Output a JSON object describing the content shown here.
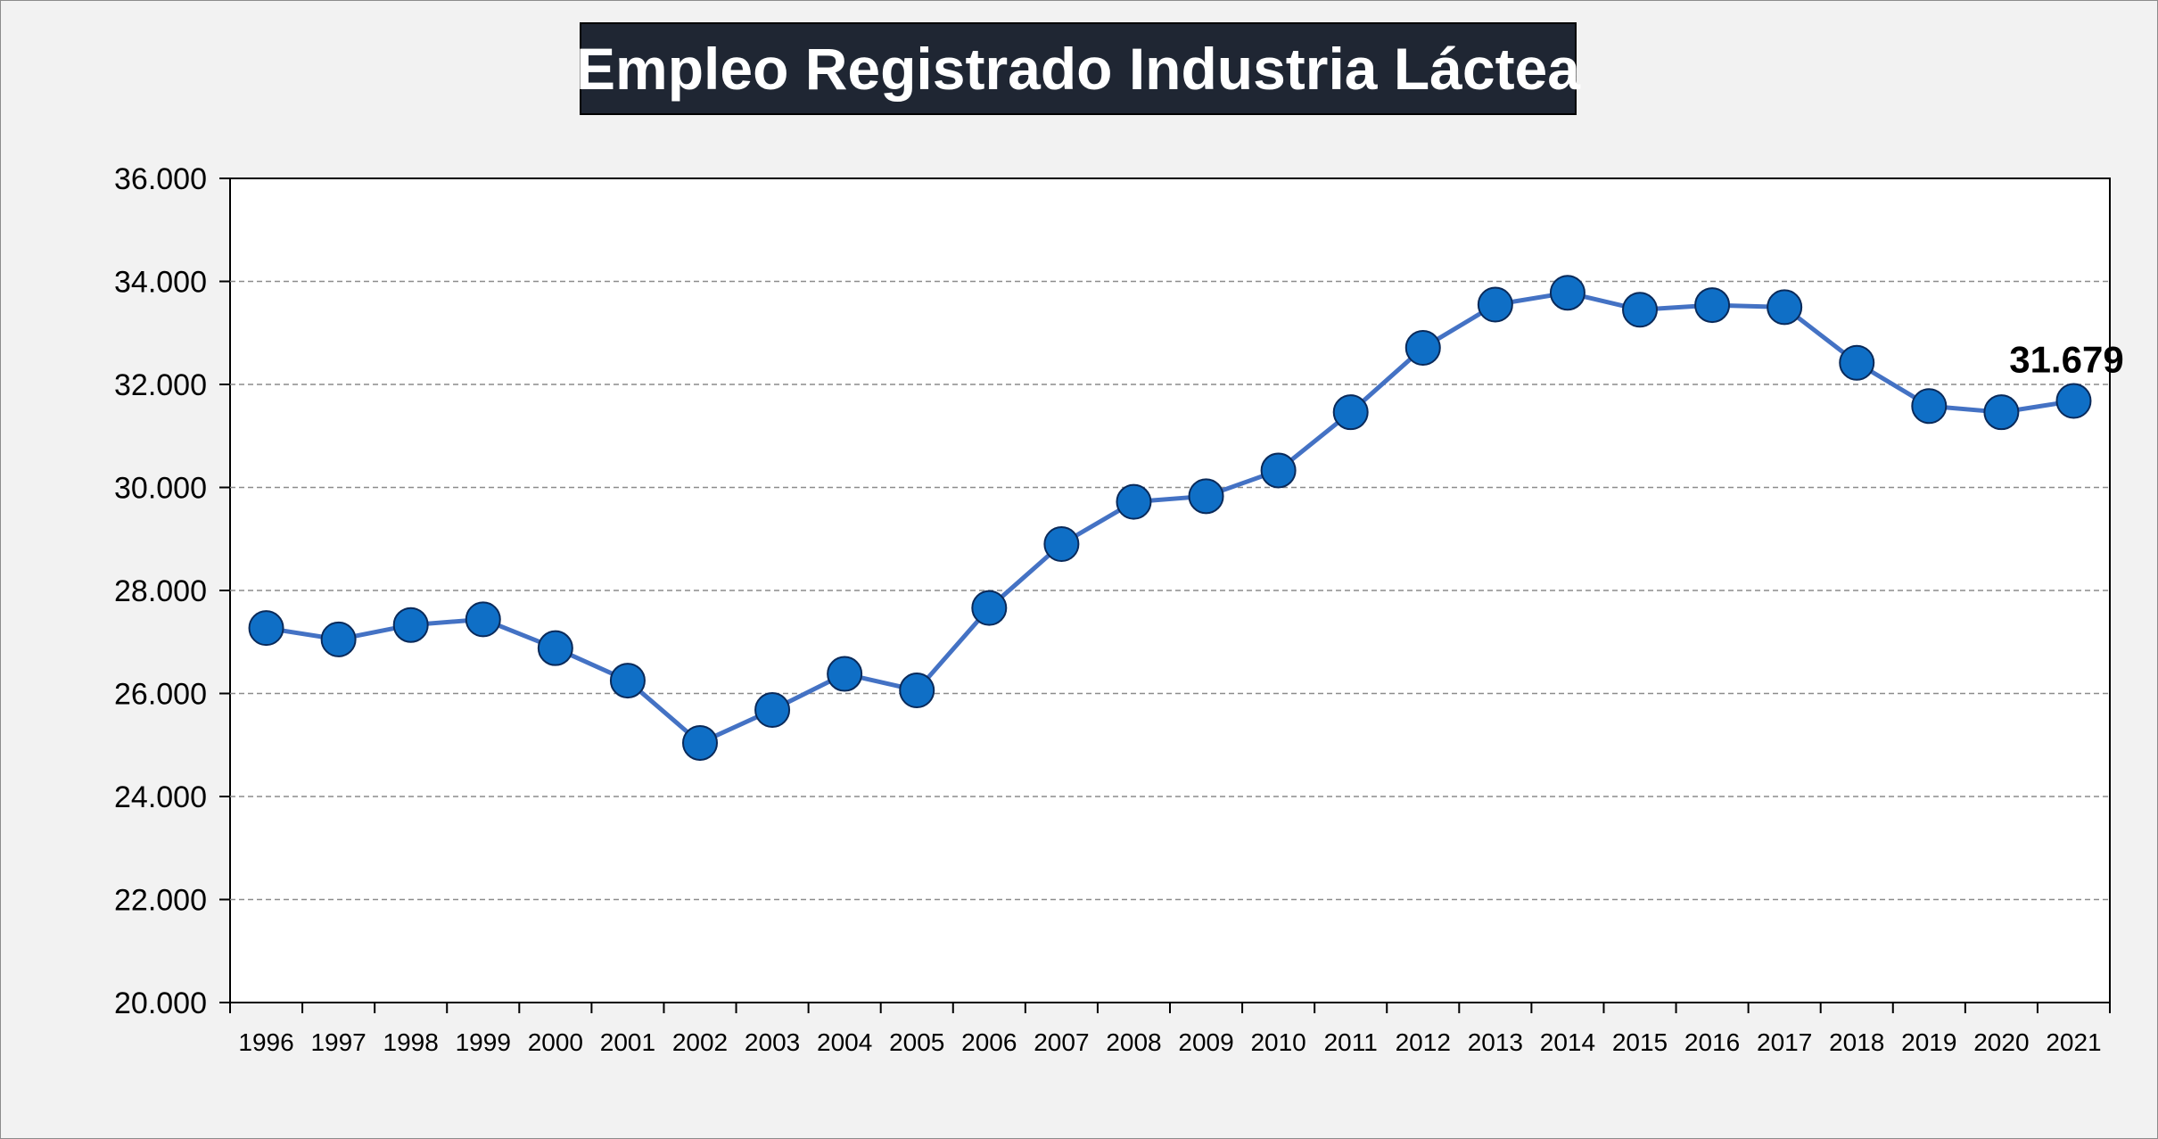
{
  "chart_data": {
    "type": "line",
    "title": "Empleo Registrado Industria Láctea",
    "xlabel": "",
    "ylabel": "",
    "categories": [
      "1996",
      "1997",
      "1998",
      "1999",
      "2000",
      "2001",
      "2002",
      "2003",
      "2004",
      "2005",
      "2006",
      "2007",
      "2008",
      "2009",
      "2010",
      "2011",
      "2012",
      "2013",
      "2014",
      "2015",
      "2016",
      "2017",
      "2018",
      "2019",
      "2020",
      "2021"
    ],
    "series": [
      {
        "values": [
          27270,
          27050,
          27330,
          27440,
          26880,
          26250,
          25040,
          25680,
          26380,
          26060,
          27660,
          28900,
          29720,
          29830,
          30330,
          31460,
          32710,
          33550,
          33780,
          33450,
          33540,
          33500,
          32420,
          31580,
          31460,
          31679
        ],
        "color": "#4472c4",
        "marker_color": "#0f6fc6"
      }
    ],
    "ylim": [
      20000,
      36000
    ],
    "yticks": [
      "20.000",
      "22.000",
      "24.000",
      "26.000",
      "28.000",
      "30.000",
      "32.000",
      "34.000",
      "36.000"
    ],
    "grid": true,
    "legend": "none",
    "annotations": [
      {
        "category": "2021",
        "text": "31.679"
      }
    ]
  }
}
